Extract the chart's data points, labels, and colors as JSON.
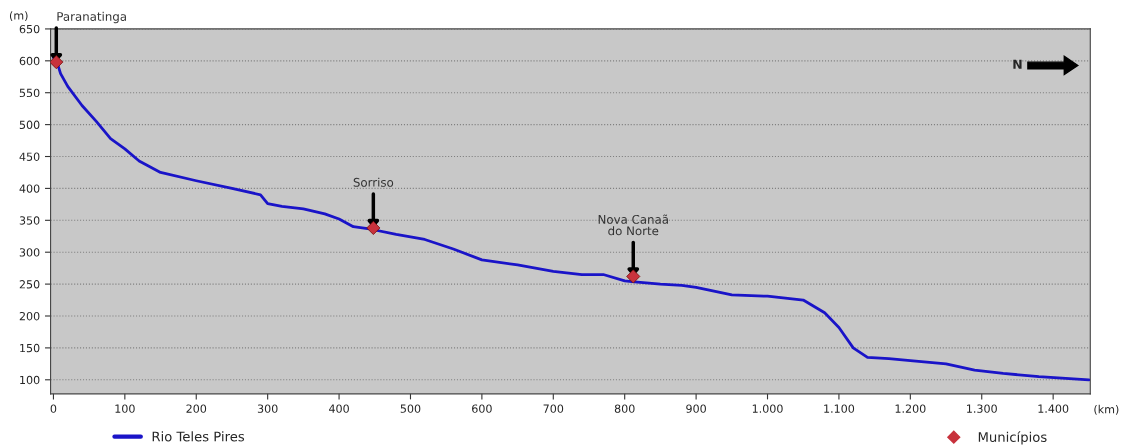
{
  "chart_data": {
    "type": "line",
    "xlabel": "(km)",
    "ylabel": "(m)",
    "xlim": [
      -4,
      1452
    ],
    "ylim": [
      78,
      650
    ],
    "xticks": [
      0,
      100,
      200,
      300,
      400,
      500,
      600,
      700,
      800,
      900,
      {
        "value": 1000,
        "label": "1.000"
      },
      {
        "value": 1100,
        "label": "1.100"
      },
      {
        "value": 1200,
        "label": "1.200"
      },
      {
        "value": 1300,
        "label": "1.300"
      },
      {
        "value": 1400,
        "label": "1.400"
      }
    ],
    "yticks": [
      100,
      150,
      200,
      250,
      300,
      350,
      400,
      450,
      500,
      550,
      600,
      650
    ],
    "grid": "y",
    "legend": "bottom",
    "series": [
      {
        "name": "Rio Teles Pires",
        "color": "#1a14c8",
        "marker": "none",
        "line_style": "solid",
        "x": [
          0,
          5,
          10,
          20,
          40,
          60,
          80,
          100,
          120,
          150,
          200,
          250,
          290,
          300,
          320,
          350,
          380,
          400,
          420,
          445,
          480,
          520,
          560,
          600,
          650,
          700,
          740,
          770,
          800,
          810,
          850,
          880,
          900,
          950,
          1000,
          1050,
          1080,
          1100,
          1120,
          1140,
          1170,
          1200,
          1250,
          1290,
          1330,
          1380,
          1450
        ],
        "values": [
          605,
          598,
          580,
          560,
          530,
          505,
          478,
          462,
          443,
          425,
          412,
          400,
          390,
          376,
          372,
          368,
          360,
          352,
          340,
          336,
          328,
          320,
          305,
          288,
          280,
          270,
          265,
          265,
          255,
          254,
          250,
          248,
          245,
          233,
          231,
          225,
          205,
          182,
          150,
          135,
          133,
          130,
          125,
          115,
          110,
          105,
          100
        ]
      },
      {
        "name": "Municípios",
        "type": "scatter",
        "color": "#c8323c",
        "marker": "diamond",
        "x": [
          4,
          448,
          812
        ],
        "values": [
          598,
          338,
          262
        ]
      }
    ],
    "annotations": [
      {
        "text": "Paranatinga",
        "x": 4,
        "y": 598
      },
      {
        "text": "Sorriso",
        "x": 448,
        "y": 338
      },
      {
        "text": "Nova Canaã\ndo Norte",
        "x": 812,
        "y": 262
      },
      "N"
    ]
  }
}
